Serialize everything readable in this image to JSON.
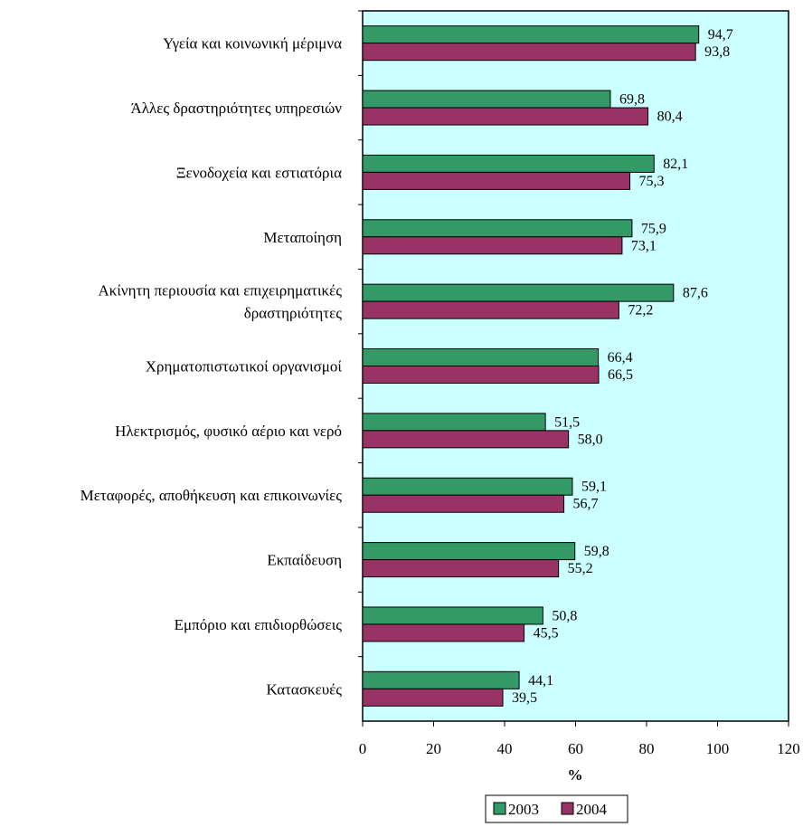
{
  "chart_data": {
    "type": "bar",
    "orientation": "horizontal",
    "categories": [
      [
        "Υγεία και κοινωνική μέριμνα"
      ],
      [
        "Άλλες δραστηριότητες υπηρεσιών"
      ],
      [
        "Ξενοδοχεία και εστιατόρια"
      ],
      [
        "Μεταποίηση"
      ],
      [
        "Ακίνητη περιουσία και επιχειρηματικές",
        "δραστηριότητες"
      ],
      [
        "Χρηματοπιστωτικοί οργανισμοί"
      ],
      [
        "Ηλεκτρισμός, φυσικό αέριο και νερό"
      ],
      [
        "Μεταφορές, αποθήκευση και επικοινωνίες"
      ],
      [
        "Εκπαίδευση"
      ],
      [
        "Εμπόριο και επιδιορθώσεις"
      ],
      [
        "Κατασκευές"
      ]
    ],
    "series": [
      {
        "name": "2003",
        "color": "#339966",
        "values": [
          94.7,
          69.8,
          82.1,
          75.9,
          87.6,
          66.4,
          51.5,
          59.1,
          59.8,
          50.8,
          44.1
        ],
        "labels": [
          "94,7",
          "69,8",
          "82,1",
          "75,9",
          "87,6",
          "66,4",
          "51,5",
          "59,1",
          "59,8",
          "50,8",
          "44,1"
        ]
      },
      {
        "name": "2004",
        "color": "#993366",
        "values": [
          93.8,
          80.4,
          75.3,
          73.1,
          72.2,
          66.5,
          58.0,
          56.7,
          55.2,
          45.5,
          39.5
        ],
        "labels": [
          "93,8",
          "80,4",
          "75,3",
          "73,1",
          "72,2",
          "66,5",
          "58,0",
          "56,7",
          "55,2",
          "45,5",
          "39,5"
        ]
      }
    ],
    "xlabel": "%",
    "xlim": [
      0,
      120
    ],
    "xticks": [
      "0",
      "20",
      "40",
      "60",
      "80",
      "100",
      "120"
    ],
    "grid": false,
    "plot_background": "#ccffff",
    "legend_position": "bottom"
  }
}
